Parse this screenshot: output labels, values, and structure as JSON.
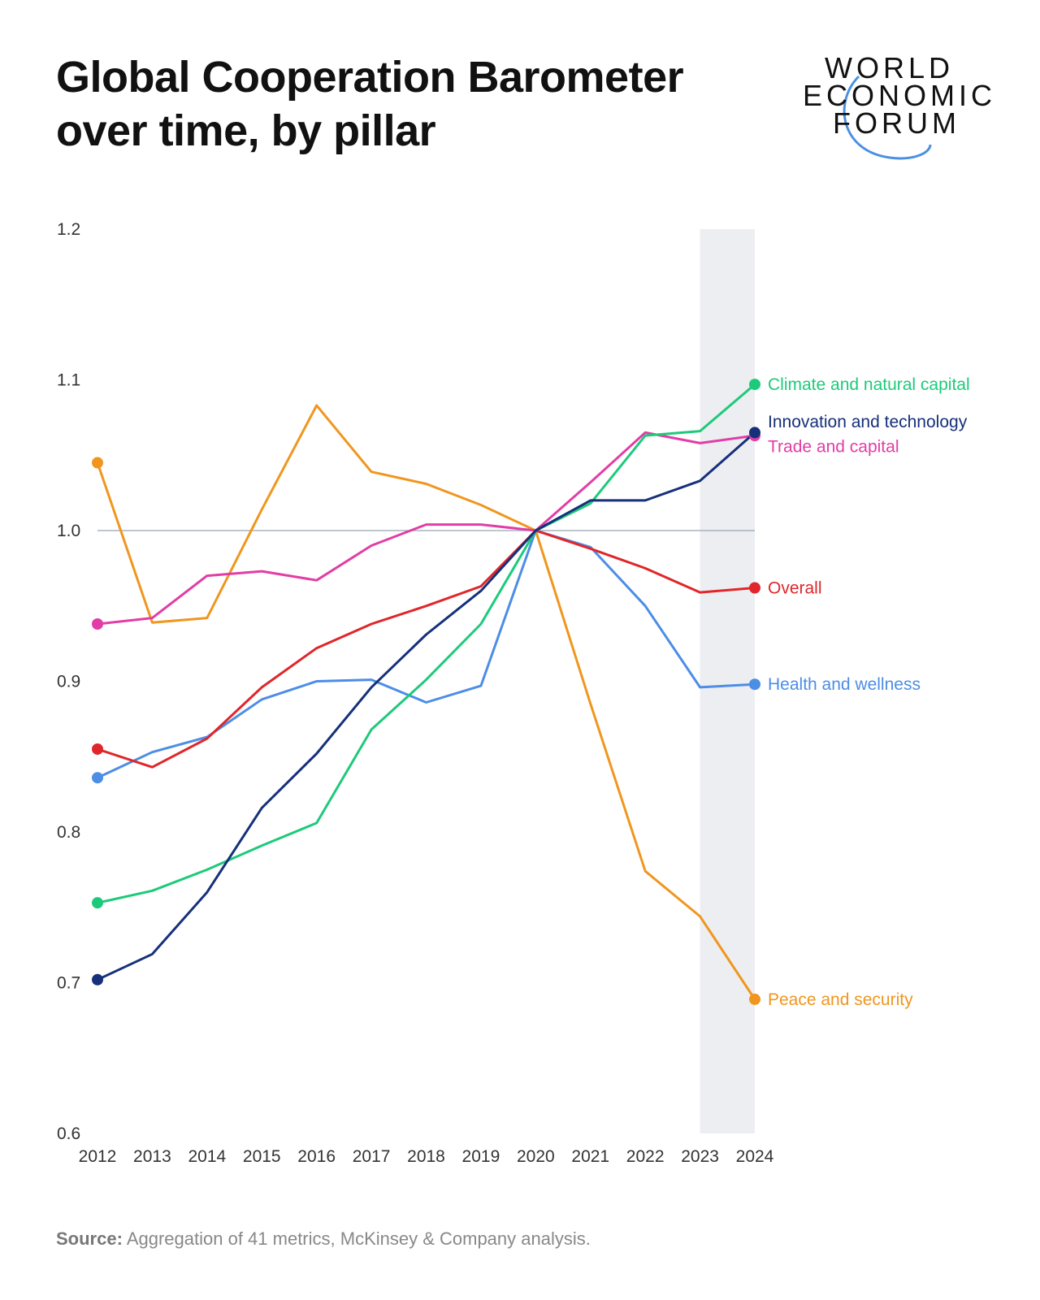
{
  "title_line1": "Global Cooperation Barometer",
  "title_line2": "over time, by pillar",
  "logo": {
    "line1": "WORLD",
    "line2": "ECONOMIC",
    "line3": "FORUM"
  },
  "source": {
    "label": "Source:",
    "text": "Aggregation of 41 metrics, McKinsey & Company analysis."
  },
  "chart_data": {
    "type": "line",
    "title": "Global Cooperation Barometer over time, by pillar",
    "xlabel": "",
    "ylabel": "",
    "ylim": [
      0.6,
      1.2
    ],
    "yticks": [
      "0.6",
      "0.7",
      "0.8",
      "0.9",
      "1.0",
      "1.1",
      "1.2"
    ],
    "x": [
      2012,
      2013,
      2014,
      2015,
      2016,
      2017,
      2018,
      2019,
      2020,
      2021,
      2022,
      2023,
      2024
    ],
    "reference_line": 1.0,
    "highlight_range": [
      2023,
      2024
    ],
    "grid": false,
    "legend": "direct labels at right",
    "series": [
      {
        "name": "Peace and security",
        "color": "#F0961E",
        "values": [
          1.045,
          0.939,
          0.942,
          1.014,
          1.083,
          1.039,
          1.031,
          1.017,
          1.0,
          0.885,
          0.774,
          0.744,
          0.689
        ]
      },
      {
        "name": "Trade and capital",
        "color": "#E23DA6",
        "values": [
          0.938,
          0.942,
          0.97,
          0.973,
          0.967,
          0.99,
          1.004,
          1.004,
          1.0,
          1.032,
          1.065,
          1.058,
          1.063
        ]
      },
      {
        "name": "Health and wellness",
        "color": "#4C8DE6",
        "values": [
          0.836,
          0.853,
          0.863,
          0.888,
          0.9,
          0.901,
          0.886,
          0.897,
          1.0,
          0.989,
          0.95,
          0.896,
          0.898
        ]
      },
      {
        "name": "Overall",
        "color": "#E0262A",
        "values": [
          0.855,
          0.843,
          0.862,
          0.896,
          0.922,
          0.938,
          0.95,
          0.963,
          1.0,
          0.988,
          0.975,
          0.959,
          0.962
        ]
      },
      {
        "name": "Climate and natural capital",
        "color": "#1DCA7A",
        "values": [
          0.753,
          0.761,
          0.775,
          0.791,
          0.806,
          0.868,
          0.901,
          0.938,
          1.0,
          1.018,
          1.063,
          1.066,
          1.097
        ]
      },
      {
        "name": "Innovation and technology",
        "color": "#16307A",
        "values": [
          0.702,
          0.719,
          0.76,
          0.816,
          0.852,
          0.896,
          0.931,
          0.96,
          1.0,
          1.02,
          1.02,
          1.033,
          1.065
        ]
      }
    ]
  }
}
